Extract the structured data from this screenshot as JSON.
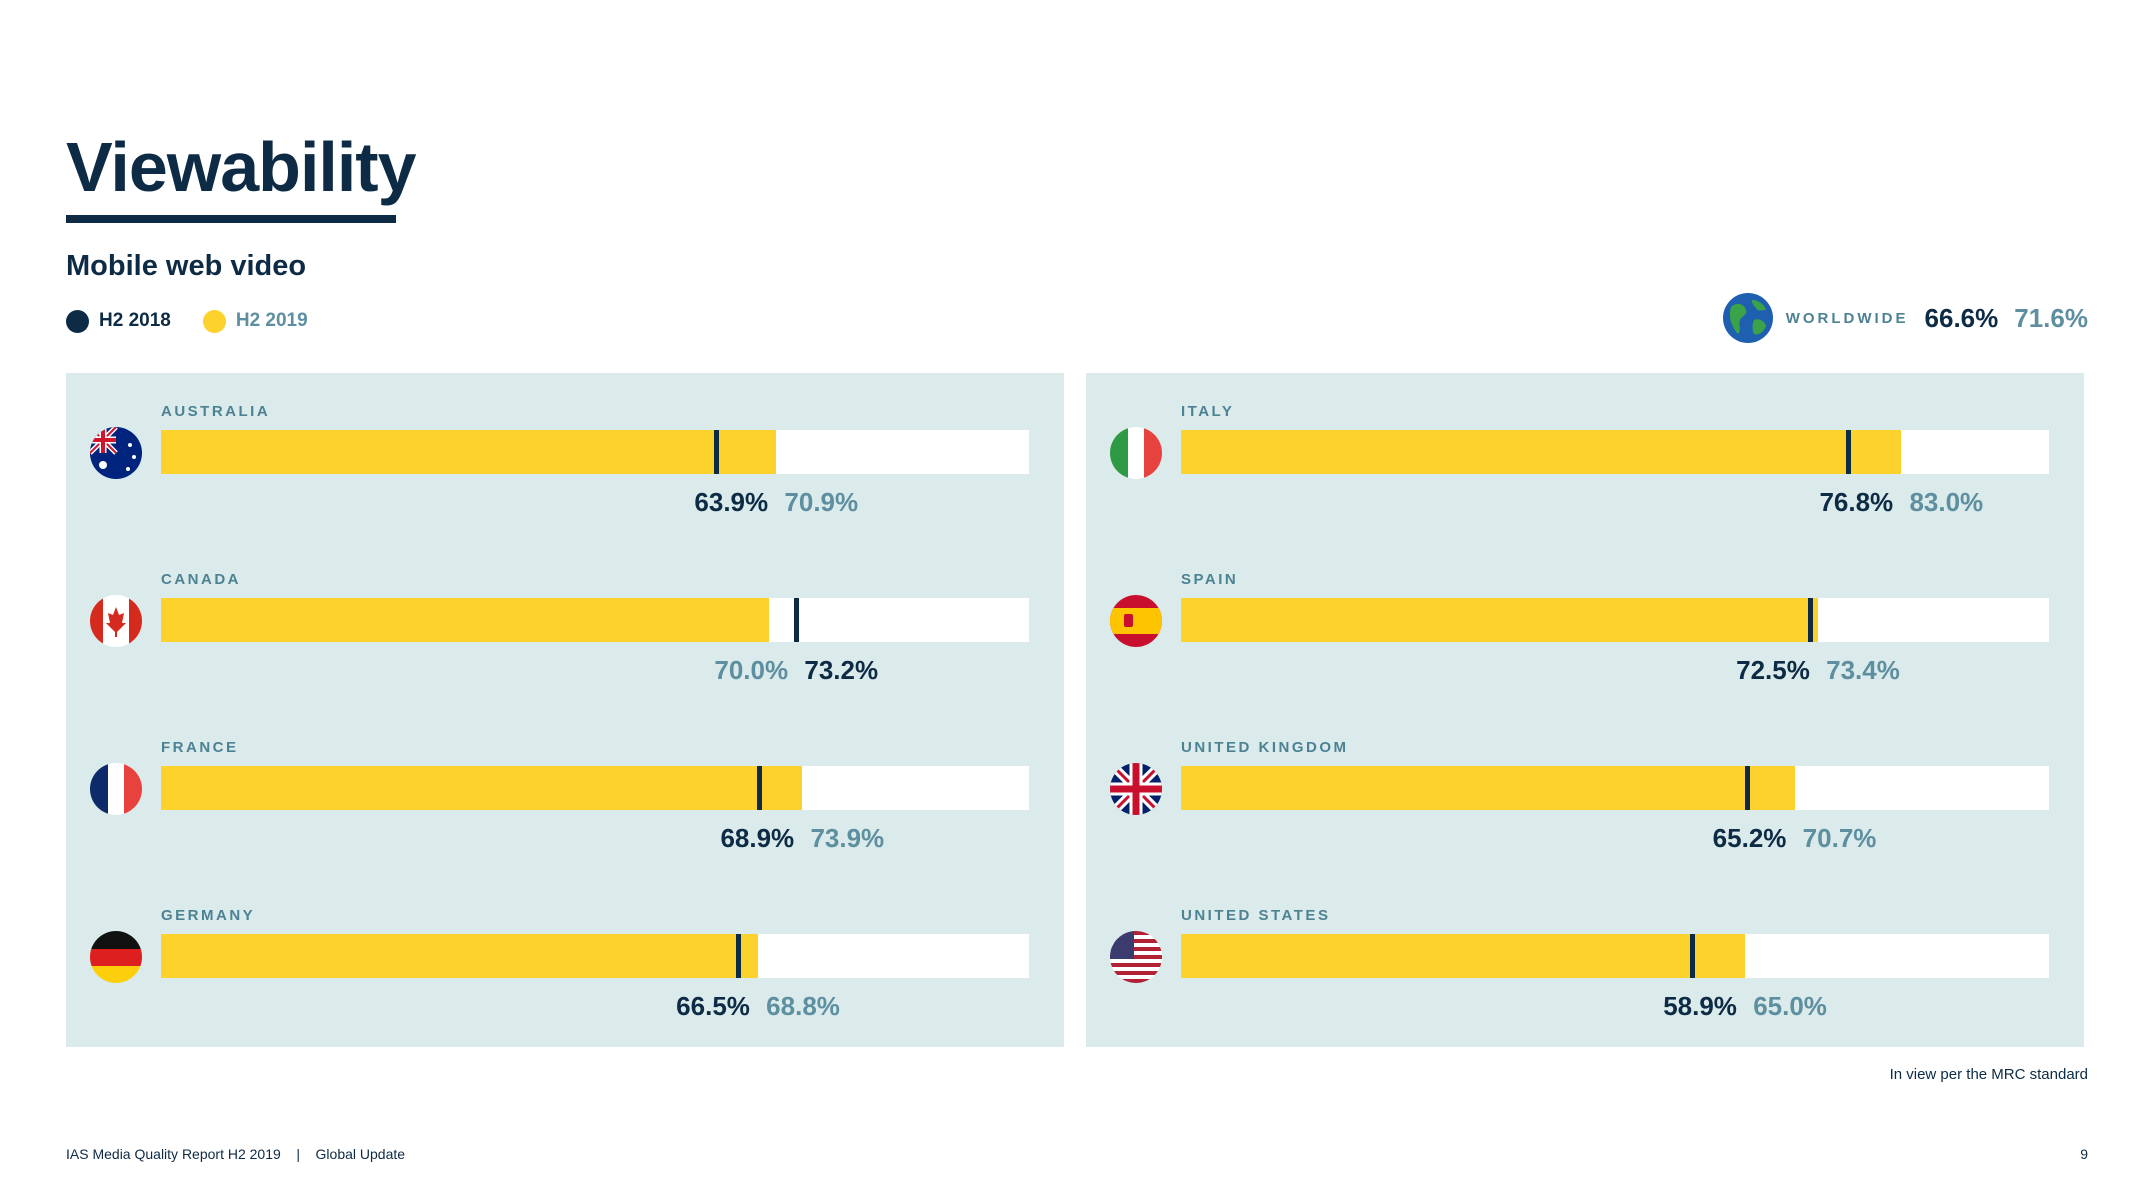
{
  "title": "Viewability",
  "subtitle": "Mobile web video",
  "legend": {
    "h2_2018": "H2 2018",
    "h2_2019": "H2 2019",
    "color_2018": "#0d2b45",
    "color_2019": "#fdd22c"
  },
  "worldwide": {
    "label": "WORLDWIDE",
    "h2_2018": "66.6%",
    "h2_2019": "71.6%",
    "icon": "globe-icon"
  },
  "note": "In view per the MRC standard",
  "footer": {
    "report": "IAS Media Quality Report H2 2019",
    "separator": "|",
    "section": "Global Update",
    "page_number": "9"
  },
  "chart_data": {
    "type": "bar",
    "xlim": [
      0,
      100
    ],
    "series_names": [
      "H2 2018",
      "H2 2019"
    ],
    "categories": [
      {
        "name": "AUSTRALIA",
        "flag": "australia-flag-icon",
        "h2_2018": 63.9,
        "h2_2019": 70.9,
        "h2_2018_label": "63.9%",
        "h2_2019_label": "70.9%"
      },
      {
        "name": "CANADA",
        "flag": "canada-flag-icon",
        "h2_2018": 73.2,
        "h2_2019": 70.0,
        "h2_2018_label": "73.2%",
        "h2_2019_label": "70.0%"
      },
      {
        "name": "FRANCE",
        "flag": "france-flag-icon",
        "h2_2018": 68.9,
        "h2_2019": 73.9,
        "h2_2018_label": "68.9%",
        "h2_2019_label": "73.9%"
      },
      {
        "name": "GERMANY",
        "flag": "germany-flag-icon",
        "h2_2018": 66.5,
        "h2_2019": 68.8,
        "h2_2018_label": "66.5%",
        "h2_2019_label": "68.8%"
      },
      {
        "name": "ITALY",
        "flag": "italy-flag-icon",
        "h2_2018": 76.8,
        "h2_2019": 83.0,
        "h2_2018_label": "76.8%",
        "h2_2019_label": "83.0%"
      },
      {
        "name": "SPAIN",
        "flag": "spain-flag-icon",
        "h2_2018": 72.5,
        "h2_2019": 73.4,
        "h2_2018_label": "72.5%",
        "h2_2019_label": "73.4%"
      },
      {
        "name": "UNITED KINGDOM",
        "flag": "uk-flag-icon",
        "h2_2018": 65.2,
        "h2_2019": 70.7,
        "h2_2018_label": "65.2%",
        "h2_2019_label": "70.7%"
      },
      {
        "name": "UNITED STATES",
        "flag": "us-flag-icon",
        "h2_2018": 58.9,
        "h2_2019": 65.0,
        "h2_2018_label": "58.9%",
        "h2_2019_label": "65.0%"
      }
    ]
  }
}
